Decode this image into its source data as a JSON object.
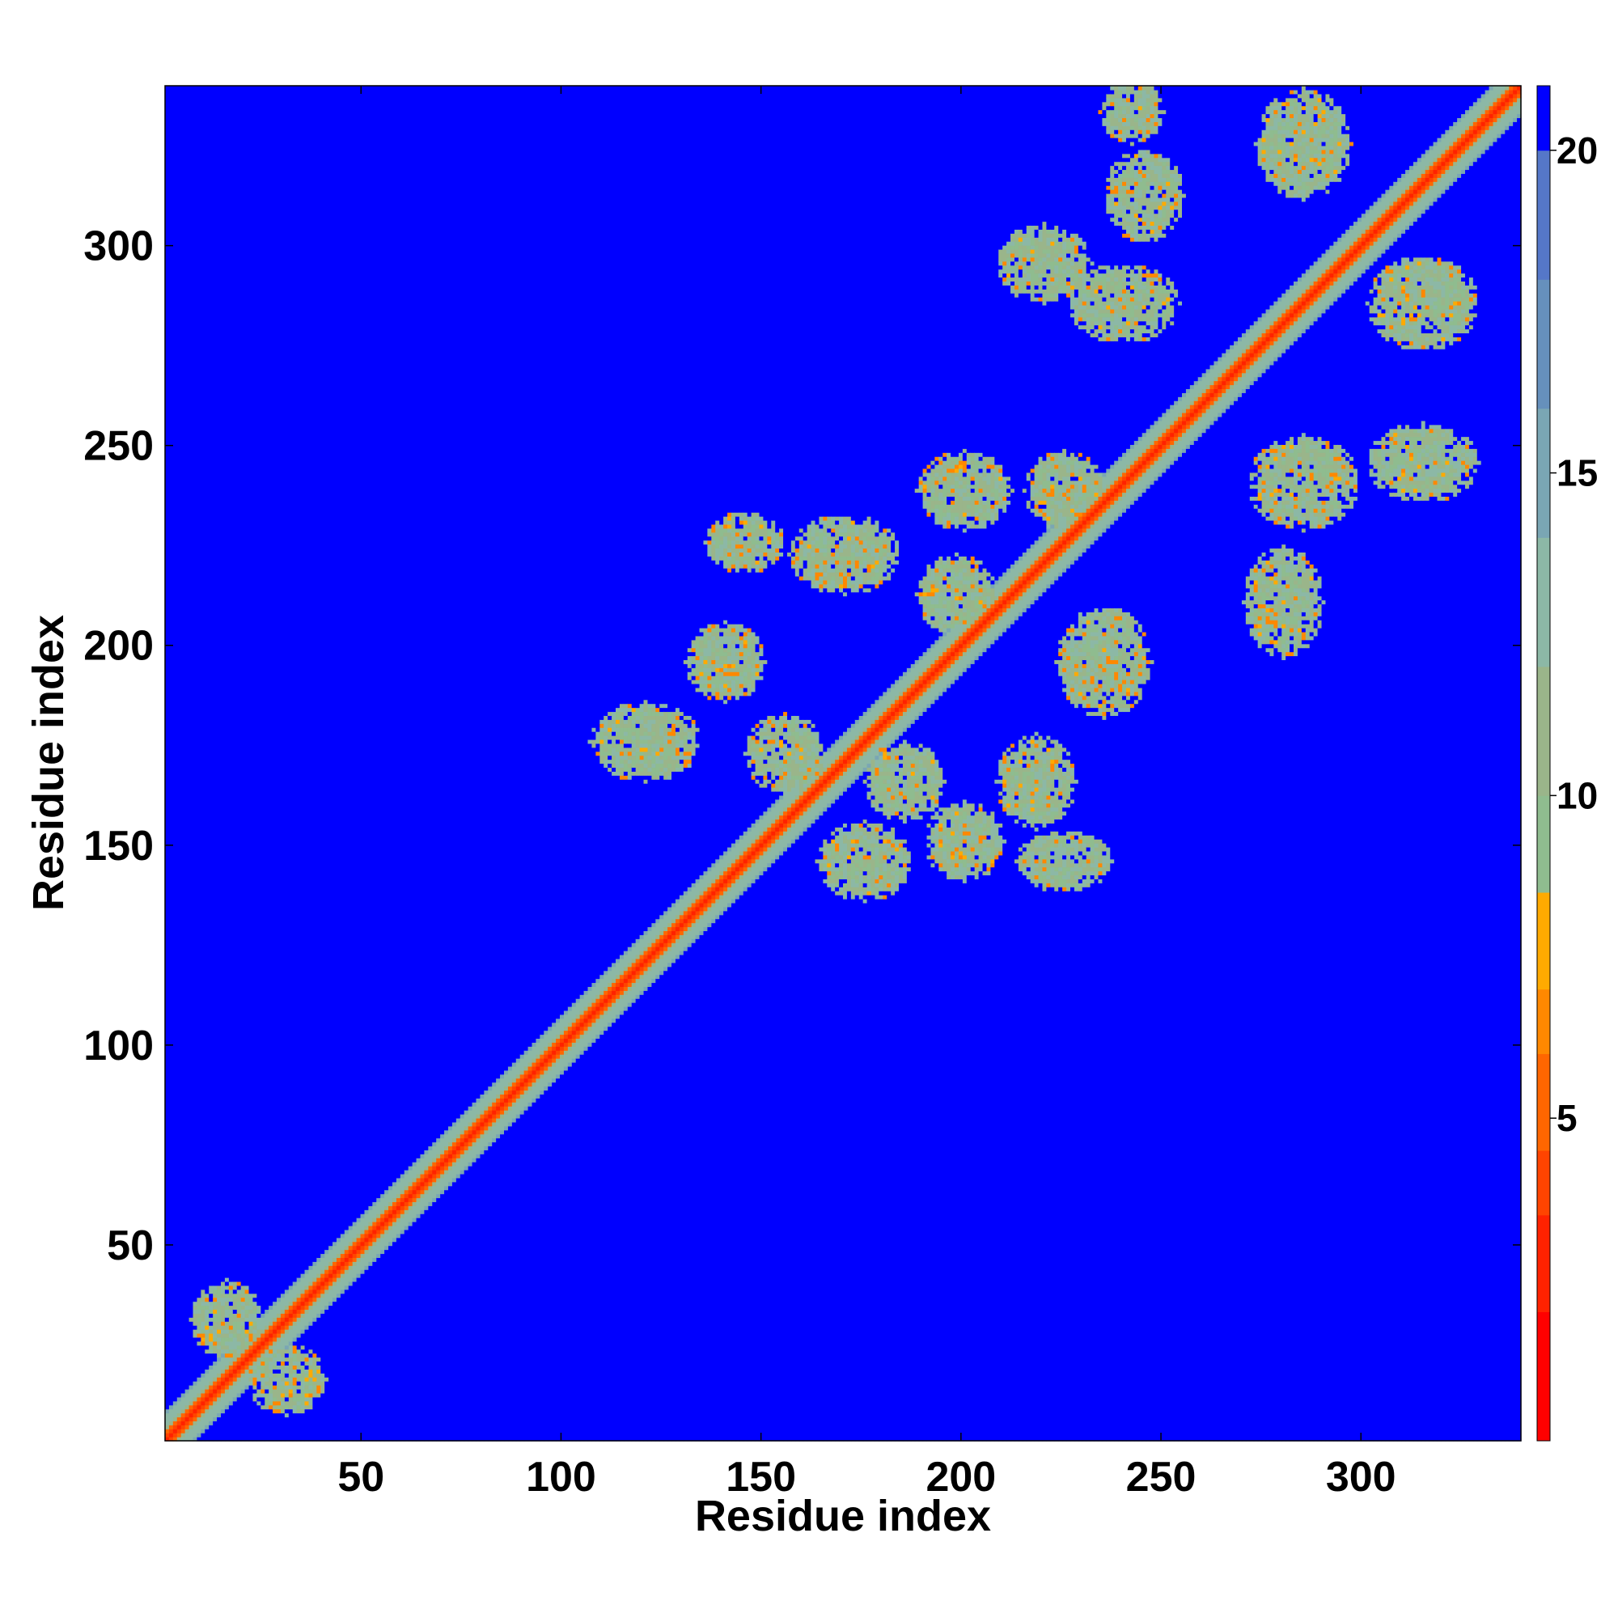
{
  "chart_data": {
    "type": "heatmap",
    "title": "",
    "xlabel": "Residue index",
    "ylabel": "Residue index",
    "n_residues": 340,
    "xlim": [
      1,
      340
    ],
    "ylim": [
      1,
      340
    ],
    "x_ticks": [
      50,
      100,
      150,
      200,
      250,
      300
    ],
    "y_ticks": [
      50,
      100,
      150,
      200,
      250,
      300
    ],
    "x_tick_labels": [
      "50",
      "100",
      "150",
      "200",
      "250",
      "300"
    ],
    "y_tick_labels": [
      "50",
      "100",
      "150",
      "200",
      "250",
      "300"
    ],
    "colorbar": {
      "range": [
        0,
        21
      ],
      "ticks": [
        5,
        10,
        15,
        20
      ],
      "tick_labels": [
        "5",
        "10",
        "15",
        "20"
      ],
      "colors": [
        "#ff0000",
        "#ff2200",
        "#ff4400",
        "#ff6600",
        "#ff8800",
        "#ffaa00",
        "#8fbc8f",
        "#9ab58a",
        "#8cb8a6",
        "#7aa6b4",
        "#6690bc",
        "#5577c8",
        "#0000ff"
      ],
      "levels": [
        0,
        2,
        3.5,
        4.5,
        6,
        7,
        8.5,
        10,
        12,
        14,
        16,
        18,
        20,
        21
      ]
    },
    "diagonal": {
      "core_value": 2,
      "inner_halfwidth": 2,
      "outer_value": 11,
      "outer_halfwidth": 7
    },
    "background_value": 21,
    "contact_regions": [
      {
        "cx": 30,
        "cy": 15,
        "rx": 10,
        "ry": 9,
        "value": 11
      },
      {
        "cx": 15,
        "cy": 30,
        "rx": 9,
        "ry": 10,
        "value": 11
      },
      {
        "cx": 120,
        "cy": 175,
        "rx": 14,
        "ry": 10,
        "value": 11
      },
      {
        "cx": 140,
        "cy": 195,
        "rx": 10,
        "ry": 10,
        "value": 11
      },
      {
        "cx": 155,
        "cy": 172,
        "rx": 10,
        "ry": 10,
        "value": 11
      },
      {
        "cx": 170,
        "cy": 222,
        "rx": 14,
        "ry": 10,
        "value": 11
      },
      {
        "cx": 145,
        "cy": 225,
        "rx": 10,
        "ry": 8,
        "value": 11
      },
      {
        "cx": 200,
        "cy": 238,
        "rx": 12,
        "ry": 10,
        "value": 11
      },
      {
        "cx": 198,
        "cy": 212,
        "rx": 10,
        "ry": 10,
        "value": 11
      },
      {
        "cx": 185,
        "cy": 165,
        "rx": 10,
        "ry": 10,
        "value": 11
      },
      {
        "cx": 175,
        "cy": 145,
        "rx": 12,
        "ry": 10,
        "value": 11
      },
      {
        "cx": 200,
        "cy": 150,
        "rx": 10,
        "ry": 10,
        "value": 11
      },
      {
        "cx": 218,
        "cy": 165,
        "rx": 10,
        "ry": 12,
        "value": 11
      },
      {
        "cx": 225,
        "cy": 145,
        "rx": 12,
        "ry": 8,
        "value": 11
      },
      {
        "cx": 235,
        "cy": 195,
        "rx": 12,
        "ry": 14,
        "value": 11
      },
      {
        "cx": 225,
        "cy": 238,
        "rx": 10,
        "ry": 10,
        "value": 11
      },
      {
        "cx": 220,
        "cy": 295,
        "rx": 12,
        "ry": 10,
        "value": 11
      },
      {
        "cx": 240,
        "cy": 285,
        "rx": 14,
        "ry": 10,
        "value": 11
      },
      {
        "cx": 245,
        "cy": 312,
        "rx": 10,
        "ry": 12,
        "value": 11
      },
      {
        "cx": 242,
        "cy": 333,
        "rx": 8,
        "ry": 8,
        "value": 11
      },
      {
        "cx": 285,
        "cy": 240,
        "rx": 14,
        "ry": 12,
        "value": 11
      },
      {
        "cx": 280,
        "cy": 210,
        "rx": 10,
        "ry": 14,
        "value": 11
      },
      {
        "cx": 315,
        "cy": 245,
        "rx": 14,
        "ry": 10,
        "value": 11
      },
      {
        "cx": 285,
        "cy": 325,
        "rx": 12,
        "ry": 14,
        "value": 11
      },
      {
        "cx": 315,
        "cy": 285,
        "rx": 14,
        "ry": 12,
        "value": 11
      }
    ]
  }
}
